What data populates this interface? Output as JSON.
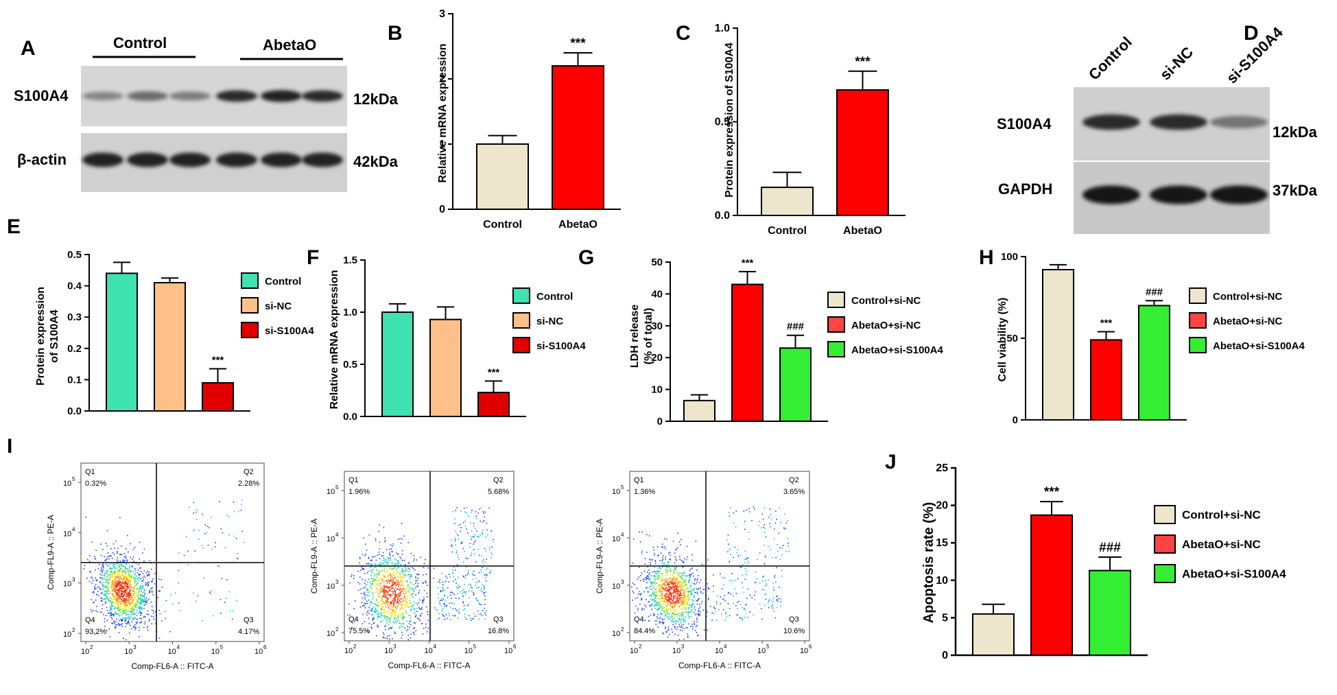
{
  "panels": {
    "A": "A",
    "B": "B",
    "C": "C",
    "D": "D",
    "E": "E",
    "F": "F",
    "G": "G",
    "H": "H",
    "I": "I",
    "J": "J"
  },
  "blot_A": {
    "group_left": "Control",
    "group_right": "AbetaO",
    "rows": [
      {
        "name": "S100A4",
        "size": "12kDa",
        "intensities": [
          0.35,
          0.5,
          0.4,
          0.85,
          0.9,
          0.85
        ]
      },
      {
        "name": "β-actin",
        "size": "42kDa",
        "intensities": [
          0.9,
          0.9,
          0.9,
          0.9,
          0.9,
          0.9
        ]
      }
    ]
  },
  "blot_D": {
    "lanes": [
      "Control",
      "si-NC",
      "si-S100A4"
    ],
    "rows": [
      {
        "name": "S100A4",
        "size": "12kDa",
        "intensities": [
          0.85,
          0.85,
          0.45
        ]
      },
      {
        "name": "GAPDH",
        "size": "37kDa",
        "intensities": [
          0.95,
          0.95,
          0.95
        ]
      }
    ]
  },
  "colors": {
    "beige": "#ede6cc",
    "red": "#ff0000",
    "teal": "#3ee3b0",
    "orange": "#fdc089",
    "darkred": "#e00000",
    "green": "#33ee33",
    "legred": "#ff4444"
  },
  "chart_data": [
    {
      "id": "B",
      "type": "bar",
      "categories": [
        "Control",
        "AbetaO"
      ],
      "values": [
        1.0,
        2.2
      ],
      "errors": [
        0.13,
        0.2
      ],
      "ylabel": "Relative mRNA expression",
      "ylim": [
        0,
        3
      ],
      "yticks": [
        0,
        1,
        2,
        3
      ],
      "annotations": [
        "",
        "***"
      ],
      "colors": [
        "#ede6cc",
        "#ff0000"
      ]
    },
    {
      "id": "C",
      "type": "bar",
      "categories": [
        "Control",
        "AbetaO"
      ],
      "values": [
        0.15,
        0.67
      ],
      "errors": [
        0.08,
        0.1
      ],
      "ylabel": "Protein expression of S100A4",
      "ylim": [
        0,
        1.0
      ],
      "yticks": [
        "0.0",
        "0.5",
        "1.0"
      ],
      "annotations": [
        "",
        "***"
      ],
      "colors": [
        "#ede6cc",
        "#ff0000"
      ]
    },
    {
      "id": "E",
      "type": "bar",
      "categories": [
        "Control",
        "si-NC",
        "si-S100A4"
      ],
      "values": [
        0.44,
        0.41,
        0.09
      ],
      "errors": [
        0.035,
        0.015,
        0.045
      ],
      "ylabel_lines": [
        "Protein expression",
        "of S100A4"
      ],
      "ylim": [
        0,
        0.5
      ],
      "yticks": [
        "0.0",
        "0.1",
        "0.2",
        "0.3",
        "0.4",
        "0.5"
      ],
      "legend": [
        "Control",
        "si-NC",
        "si-S100A4"
      ],
      "annotations": [
        "",
        "",
        "***"
      ],
      "colors": [
        "#3ee3b0",
        "#fdc089",
        "#e00000"
      ]
    },
    {
      "id": "F",
      "type": "bar",
      "categories": [
        "Control",
        "si-NC",
        "si-S100A4"
      ],
      "values": [
        1.0,
        0.93,
        0.23
      ],
      "errors": [
        0.08,
        0.12,
        0.11
      ],
      "ylabel": "Relative mRNA expression",
      "ylim": [
        0,
        1.5
      ],
      "yticks": [
        "0.0",
        "0.5",
        "1.0",
        "1.5"
      ],
      "legend": [
        "Control",
        "si-NC",
        "si-S100A4"
      ],
      "annotations": [
        "",
        "",
        "***"
      ],
      "colors": [
        "#3ee3b0",
        "#fdc089",
        "#e00000"
      ]
    },
    {
      "id": "G",
      "type": "bar",
      "categories": [
        "Control+si-NC",
        "AbetaO+si-NC",
        "AbetaO+si-S100A4"
      ],
      "values": [
        6.5,
        43,
        23
      ],
      "errors": [
        1.8,
        4,
        4
      ],
      "ylabel_lines": [
        "LDH release",
        "(% of total)"
      ],
      "ylim": [
        0,
        50
      ],
      "yticks": [
        "0",
        "10",
        "20",
        "30",
        "40",
        "50"
      ],
      "legend": [
        "Control+si-NC",
        "AbetaO+si-NC",
        "AbetaO+si-S100A4"
      ],
      "annotations": [
        "",
        "***",
        "###"
      ],
      "colors": [
        "#ede6cc",
        "#ff0000",
        "#33ee33"
      ]
    },
    {
      "id": "H",
      "type": "bar",
      "categories": [
        "Control+si-NC",
        "AbetaO+si-NC",
        "AbetaO+si-S100A4"
      ],
      "values": [
        92,
        49,
        70
      ],
      "errors": [
        3,
        5,
        3
      ],
      "ylabel": "Cell viability (%)",
      "ylim": [
        0,
        100
      ],
      "yticks": [
        "0",
        "50",
        "100"
      ],
      "legend": [
        "Control+si-NC",
        "AbetaO+si-NC",
        "AbetaO+si-S100A4"
      ],
      "annotations": [
        "",
        "***",
        "###"
      ],
      "colors": [
        "#ede6cc",
        "#ff0000",
        "#33ee33"
      ]
    },
    {
      "id": "J",
      "type": "bar",
      "categories": [
        "Control+si-NC",
        "AbetaO+si-NC",
        "AbetaO+si-S100A4"
      ],
      "values": [
        5.5,
        18.7,
        11.3
      ],
      "errors": [
        1.3,
        1.8,
        1.8
      ],
      "ylabel": "Apoptosis rate (%)",
      "ylim": [
        0,
        25
      ],
      "yticks": [
        "0",
        "5",
        "10",
        "15",
        "20",
        "25"
      ],
      "legend": [
        "Control+si-NC",
        "AbetaO+si-NC",
        "AbetaO+si-S100A4"
      ],
      "annotations": [
        "",
        "***",
        "###"
      ],
      "colors": [
        "#ede6cc",
        "#ff0000",
        "#33ee33"
      ]
    },
    {
      "id": "I",
      "type": "scatter",
      "plots": [
        {
          "quadrants": {
            "Q1": "0.32%",
            "Q2": "2.28%",
            "Q3": "4.17%",
            "Q4": "93.2%"
          }
        },
        {
          "quadrants": {
            "Q1": "1.96%",
            "Q2": "5.68%",
            "Q3": "16.8%",
            "Q4": "75.5%"
          }
        },
        {
          "quadrants": {
            "Q1": "1.36%",
            "Q2": "3.65%",
            "Q3": "10.6%",
            "Q4": "84.4%"
          }
        }
      ],
      "xlabel": "Comp-FL6-A :: FITC-A",
      "ylabel": "Comp-FL9-A :: PE-A",
      "xticks": [
        "10",
        "10",
        "10",
        "10",
        "10"
      ],
      "xtick_exponents": [
        "2",
        "3",
        "4",
        "5",
        "6"
      ],
      "yticks": [
        "10",
        "10",
        "10",
        "10"
      ],
      "ytick_exponents": [
        "2",
        "3",
        "4",
        "5"
      ],
      "quadrant_names": [
        "Q1",
        "Q2",
        "Q3",
        "Q4"
      ]
    }
  ]
}
